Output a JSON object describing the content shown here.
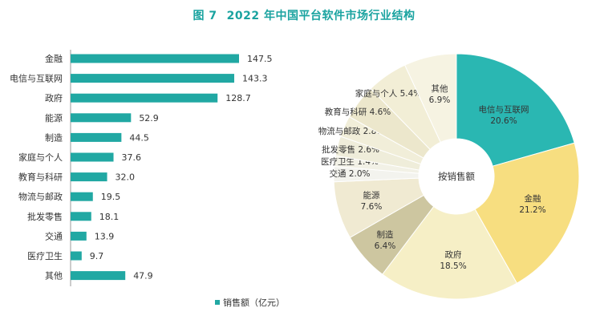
{
  "title": {
    "figure": "图 7",
    "text": "2022 年中国平台软件市场行业结构"
  },
  "chart_data": [
    {
      "type": "bar",
      "orientation": "horizontal",
      "categories": [
        "金融",
        "电信与互联网",
        "政府",
        "能源",
        "制造",
        "家庭与个人",
        "教育与科研",
        "物流与邮政",
        "批发零售",
        "交通",
        "医疗卫生",
        "其他"
      ],
      "values": [
        147.5,
        143.3,
        128.7,
        52.9,
        44.5,
        37.6,
        32.0,
        19.5,
        18.1,
        13.9,
        9.7,
        47.9
      ],
      "value_labels": [
        "147.5",
        "143.3",
        "128.7",
        "52.9",
        "44.5",
        "37.6",
        "32.0",
        "19.5",
        "18.1",
        "13.9",
        "9.7",
        "47.9"
      ],
      "legend": "销售额（亿元）",
      "legend_position": "bottom",
      "color": "#21a8a3",
      "grid": false
    },
    {
      "type": "pie",
      "style": "donut",
      "center_label": "按销售额",
      "slices": [
        {
          "label": "电信与互联网",
          "value": 20.6,
          "pct": "20.6%",
          "color": "#2ab7b2"
        },
        {
          "label": "金融",
          "value": 21.2,
          "pct": "21.2%",
          "color": "#f7de80"
        },
        {
          "label": "政府",
          "value": 18.5,
          "pct": "18.5%",
          "color": "#f6efc6"
        },
        {
          "label": "制造",
          "value": 6.4,
          "pct": "6.4%",
          "color": "#cdc6a0"
        },
        {
          "label": "能源",
          "value": 7.6,
          "pct": "7.6%",
          "color": "#f0ead2"
        },
        {
          "label": "交通",
          "value": 2.0,
          "pct": "2.0%",
          "color": "#f3f3ee"
        },
        {
          "label": "医疗卫生",
          "value": 1.4,
          "pct": "1.4%",
          "color": "#f2f1e6"
        },
        {
          "label": "批发零售",
          "value": 2.6,
          "pct": "2.6%",
          "color": "#efedda"
        },
        {
          "label": "物流与邮政",
          "value": 2.8,
          "pct": "2.8%",
          "color": "#f1eed9"
        },
        {
          "label": "教育与科研",
          "value": 4.6,
          "pct": "4.6%",
          "color": "#ece7cc"
        },
        {
          "label": "家庭与个人",
          "value": 5.4,
          "pct": "5.4%",
          "color": "#f2eed6"
        },
        {
          "label": "其他",
          "value": 6.9,
          "pct": "6.9%",
          "color": "#f6f3e2"
        }
      ]
    }
  ]
}
